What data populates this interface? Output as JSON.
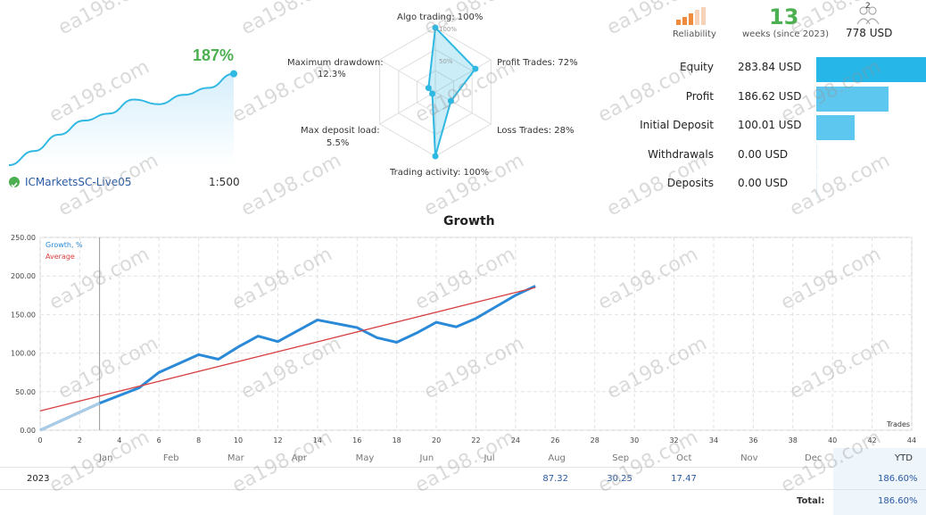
{
  "summary": {
    "growth_pct": "187%",
    "account": "ICMarketsSC-Live05",
    "leverage": "1:500",
    "mini_curve": [
      0,
      12,
      26,
      38,
      44,
      56,
      52,
      60,
      66,
      78
    ]
  },
  "radar": {
    "labels": {
      "algo": "Algo trading: 100%",
      "profit": "Profit Trades: 72%",
      "loss": "Loss Trades: 28%",
      "activity": "Trading activity: 100%",
      "deposit_load": "Max deposit load:",
      "deposit_load_val": "5.5%",
      "drawdown": "Maximum drawdown:",
      "drawdown_val": "12.3%"
    },
    "ring_labels": [
      "100%",
      "50%"
    ],
    "values": {
      "algo": 100,
      "profit": 72,
      "loss": 28,
      "activity": 100,
      "deposit_load": 5.5,
      "drawdown": 12.3
    }
  },
  "stats": {
    "reliability_label": "Reliability",
    "weeks": "13",
    "weeks_label": "weeks (since 2023)",
    "subscribers": "2",
    "subscribers_value": "778 USD",
    "rows": [
      {
        "label": "Equity",
        "value": "283.84 USD",
        "amount": 283.84
      },
      {
        "label": "Profit",
        "value": "186.62 USD",
        "amount": 186.62
      },
      {
        "label": "Initial Deposit",
        "value": "100.01 USD",
        "amount": 100.01
      },
      {
        "label": "Withdrawals",
        "value": "0.00 USD",
        "amount": 0
      },
      {
        "label": "Deposits",
        "value": "0.00 USD",
        "amount": 0
      }
    ]
  },
  "chart_data": {
    "type": "line",
    "title": "Growth",
    "xlabel": "Trades",
    "ylabel": "",
    "xlim": [
      0,
      44
    ],
    "ylim": [
      0,
      250
    ],
    "x_ticks": [
      0,
      2,
      4,
      6,
      8,
      10,
      12,
      14,
      16,
      18,
      20,
      22,
      24,
      26,
      28,
      30,
      32,
      34,
      36,
      38,
      40,
      42,
      44
    ],
    "y_ticks": [
      "0.00",
      "50.00",
      "100.00",
      "150.00",
      "200.00",
      "250.00"
    ],
    "legend": [
      "Growth, %",
      "Average"
    ],
    "legend_position": "top-left",
    "grid": true,
    "series": [
      {
        "name": "Growth, %",
        "color": "#2b8ad8",
        "x": [
          0,
          3,
          5,
          6,
          8,
          9,
          10,
          11,
          12,
          14,
          16,
          17,
          18,
          19,
          20,
          21,
          22,
          23,
          24,
          25
        ],
        "y": [
          0,
          35,
          55,
          75,
          98,
          92,
          108,
          122,
          115,
          143,
          133,
          120,
          114,
          126,
          140,
          134,
          145,
          160,
          175,
          187
        ]
      },
      {
        "name": "Average",
        "color": "#d84040",
        "x": [
          0,
          25
        ],
        "y": [
          25,
          185
        ]
      }
    ]
  },
  "table": {
    "months": [
      "Jan",
      "Feb",
      "Mar",
      "Apr",
      "May",
      "Jun",
      "Jul",
      "Aug",
      "Sep",
      "Oct",
      "Nov",
      "Dec"
    ],
    "ytd_header": "YTD",
    "year": "2023",
    "values": [
      "",
      "",
      "",
      "",
      "",
      "",
      "",
      "87.32",
      "30.25",
      "17.47",
      "",
      ""
    ],
    "ytd": "186.60%",
    "total_label": "Total:",
    "total": "186.60%"
  },
  "watermark": "ea198.com"
}
